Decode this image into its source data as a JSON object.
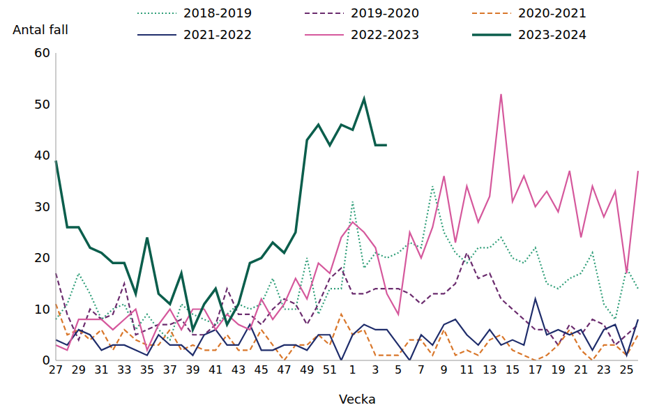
{
  "chart_data": {
    "type": "line",
    "y_label": "Antal fall",
    "x_label": "Vecka",
    "categories": [
      "27",
      null,
      "29",
      null,
      "31",
      null,
      "33",
      null,
      "35",
      null,
      "37",
      null,
      "39",
      null,
      "41",
      null,
      "43",
      null,
      "45",
      null,
      "47",
      null,
      "49",
      null,
      "51",
      null,
      "1",
      null,
      "3",
      null,
      "5",
      null,
      "7",
      null,
      "9",
      null,
      "11",
      null,
      "13",
      null,
      "15",
      null,
      "17",
      null,
      "19",
      null,
      "21",
      null,
      "23",
      null,
      "25",
      null
    ],
    "ylim": [
      0,
      60
    ],
    "yticks": [
      0,
      10,
      20,
      30,
      40,
      50,
      60
    ],
    "grid": false,
    "legend": "top",
    "series": [
      {
        "name": "2018-2019",
        "color": "#2f9e78",
        "line_style": "dotted",
        "values": [
          8,
          11,
          17,
          13,
          8,
          10,
          11,
          6,
          9,
          6,
          4,
          11,
          9,
          8,
          7,
          9,
          11,
          10,
          11,
          16,
          10,
          10,
          20,
          9,
          14,
          14,
          31,
          18,
          21,
          20,
          21,
          23,
          22,
          34,
          25,
          21,
          19,
          22,
          22,
          24,
          20,
          19,
          22,
          15,
          14,
          16,
          17,
          21,
          11,
          8,
          18,
          14
        ]
      },
      {
        "name": "2019-2020",
        "color": "#6b2c6e",
        "line_style": "dashed",
        "values": [
          17,
          9,
          4,
          10,
          8,
          9,
          15,
          5,
          6,
          7,
          7,
          8,
          5,
          5,
          7,
          14,
          9,
          9,
          7,
          10,
          12,
          11,
          7,
          11,
          16,
          18,
          13,
          13,
          14,
          14,
          14,
          13,
          11,
          13,
          13,
          15,
          21,
          16,
          17,
          12,
          10,
          8,
          6,
          6,
          3,
          7,
          5,
          8,
          7,
          3,
          5,
          7
        ]
      },
      {
        "name": "2020-2021",
        "color": "#d9772b",
        "line_style": "dashed",
        "values": [
          11,
          5,
          6,
          4,
          6,
          2,
          6,
          4,
          3,
          3,
          6,
          2,
          3,
          2,
          2,
          5,
          2,
          2,
          6,
          3,
          0,
          3,
          3,
          5,
          3,
          9,
          5,
          6,
          1,
          1,
          1,
          4,
          4,
          1,
          6,
          1,
          2,
          1,
          4,
          5,
          2,
          1,
          0,
          1,
          3,
          6,
          2,
          0,
          3,
          3,
          1,
          5
        ]
      },
      {
        "name": "2021-2022",
        "color": "#1f2d6b",
        "line_style": "solid",
        "values": [
          4,
          3,
          6,
          5,
          2,
          3,
          3,
          2,
          1,
          5,
          3,
          3,
          1,
          5,
          6,
          3,
          3,
          7,
          2,
          2,
          3,
          3,
          2,
          5,
          5,
          0,
          5,
          7,
          6,
          6,
          3,
          0,
          5,
          3,
          7,
          8,
          5,
          3,
          6,
          3,
          4,
          3,
          12,
          5,
          6,
          5,
          6,
          2,
          6,
          7,
          1,
          8
        ]
      },
      {
        "name": "2022-2023",
        "color": "#d5589c",
        "line_style": "solid",
        "values": [
          3,
          2,
          8,
          8,
          8,
          6,
          8,
          10,
          2,
          7,
          10,
          6,
          10,
          10,
          6,
          9,
          7,
          6,
          12,
          8,
          11,
          16,
          12,
          19,
          17,
          24,
          27,
          25,
          22,
          13,
          9,
          25,
          20,
          26,
          36,
          23,
          34,
          27,
          32,
          52,
          31,
          36,
          30,
          33,
          29,
          37,
          24,
          34,
          28,
          33,
          17,
          37
        ]
      },
      {
        "name": "2023-2024",
        "color": "#0b5e4c",
        "line_style": "solid",
        "values": [
          39,
          26,
          26,
          22,
          21,
          19,
          19,
          13,
          24,
          13,
          11,
          17,
          6,
          11,
          14,
          7,
          11,
          19,
          20,
          23,
          21,
          25,
          43,
          46,
          42,
          46,
          45,
          51,
          42,
          42,
          null,
          null,
          null,
          null,
          null,
          null,
          null,
          null,
          null,
          null,
          null,
          null,
          null,
          null,
          null,
          null,
          null,
          null,
          null,
          null,
          null,
          null
        ]
      }
    ]
  }
}
